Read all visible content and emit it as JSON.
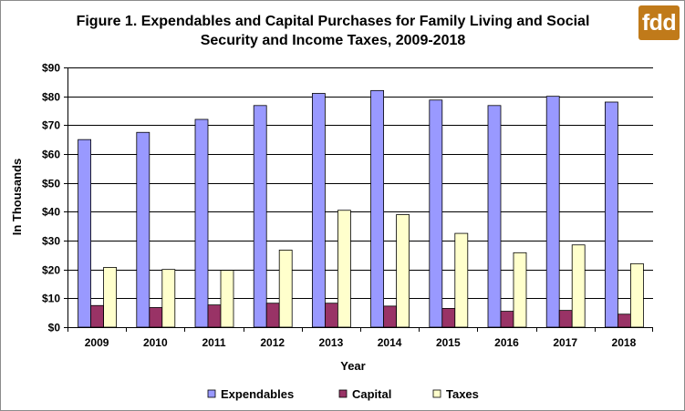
{
  "chart_data": {
    "type": "bar",
    "title": "Figure 1. Expendables and Capital Purchases for Family Living and Social Security and Income Taxes, 2009-2018",
    "title_lines": [
      "Figure 1. Expendables and Capital Purchases for Family Living and Social",
      "Security and Income Taxes, 2009-2018"
    ],
    "xlabel": "Year",
    "ylabel": "In Thousands",
    "categories": [
      "2009",
      "2010",
      "2011",
      "2012",
      "2013",
      "2014",
      "2015",
      "2016",
      "2017",
      "2018"
    ],
    "ylim": [
      0,
      90
    ],
    "yticks": [
      0,
      10,
      20,
      30,
      40,
      50,
      60,
      70,
      80,
      90
    ],
    "ytick_labels": [
      "$0",
      "$10",
      "$20",
      "$30",
      "$40",
      "$50",
      "$60",
      "$70",
      "$80",
      "$90"
    ],
    "grid": true,
    "legend_position": "bottom",
    "series": [
      {
        "name": "Expendables",
        "color": "#9999ff",
        "values": [
          65,
          67.5,
          72,
          76.8,
          81,
          82,
          78.7,
          76.8,
          80,
          78
        ]
      },
      {
        "name": "Capital",
        "color": "#993366",
        "values": [
          7.5,
          6.8,
          7.7,
          8.3,
          8.3,
          7.3,
          6.5,
          5.5,
          5.8,
          4.5
        ]
      },
      {
        "name": "Taxes",
        "color": "#ffffcc",
        "values": [
          20.7,
          20,
          19.7,
          26.7,
          40.5,
          39,
          32.5,
          25.8,
          28.5,
          22
        ]
      }
    ]
  },
  "logo": {
    "text": "fdd",
    "color": "#c07a1a"
  }
}
